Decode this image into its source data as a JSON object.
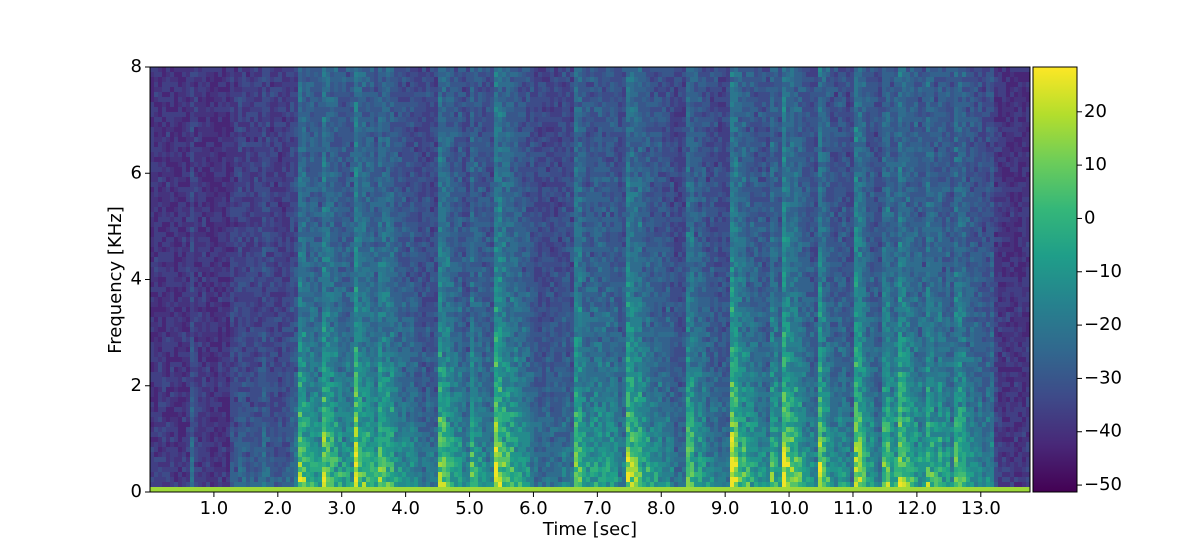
{
  "chart_data": {
    "type": "spectrogram",
    "xlabel": "Time [sec]",
    "ylabel": "Frequency [KHz]",
    "xlim": [
      0,
      13.77
    ],
    "xticks": [
      {
        "value": 1,
        "label": "1.0"
      },
      {
        "value": 2,
        "label": "2.0"
      },
      {
        "value": 3,
        "label": "3.0"
      },
      {
        "value": 4,
        "label": "4.0"
      },
      {
        "value": 5,
        "label": "5.0"
      },
      {
        "value": 6,
        "label": "6.0"
      },
      {
        "value": 7,
        "label": "7.0"
      },
      {
        "value": 8,
        "label": "8.0"
      },
      {
        "value": 9,
        "label": "9.0"
      },
      {
        "value": 10,
        "label": "10.0"
      },
      {
        "value": 11,
        "label": "11.0"
      },
      {
        "value": 12,
        "label": "12.0"
      },
      {
        "value": 13,
        "label": "13.0"
      }
    ],
    "ylim": [
      0,
      8
    ],
    "yticks": [
      0,
      2,
      4,
      6,
      8
    ],
    "colormap": "viridis",
    "clim": [
      -51.3,
      28.4
    ],
    "cticks": [
      20,
      10,
      0,
      {
        "value": -10,
        "label": "−10"
      },
      {
        "value": -20,
        "label": "−20"
      },
      {
        "value": -30,
        "label": "−30"
      },
      {
        "value": -40,
        "label": "−40"
      },
      {
        "value": -50,
        "label": "−50"
      }
    ]
  }
}
